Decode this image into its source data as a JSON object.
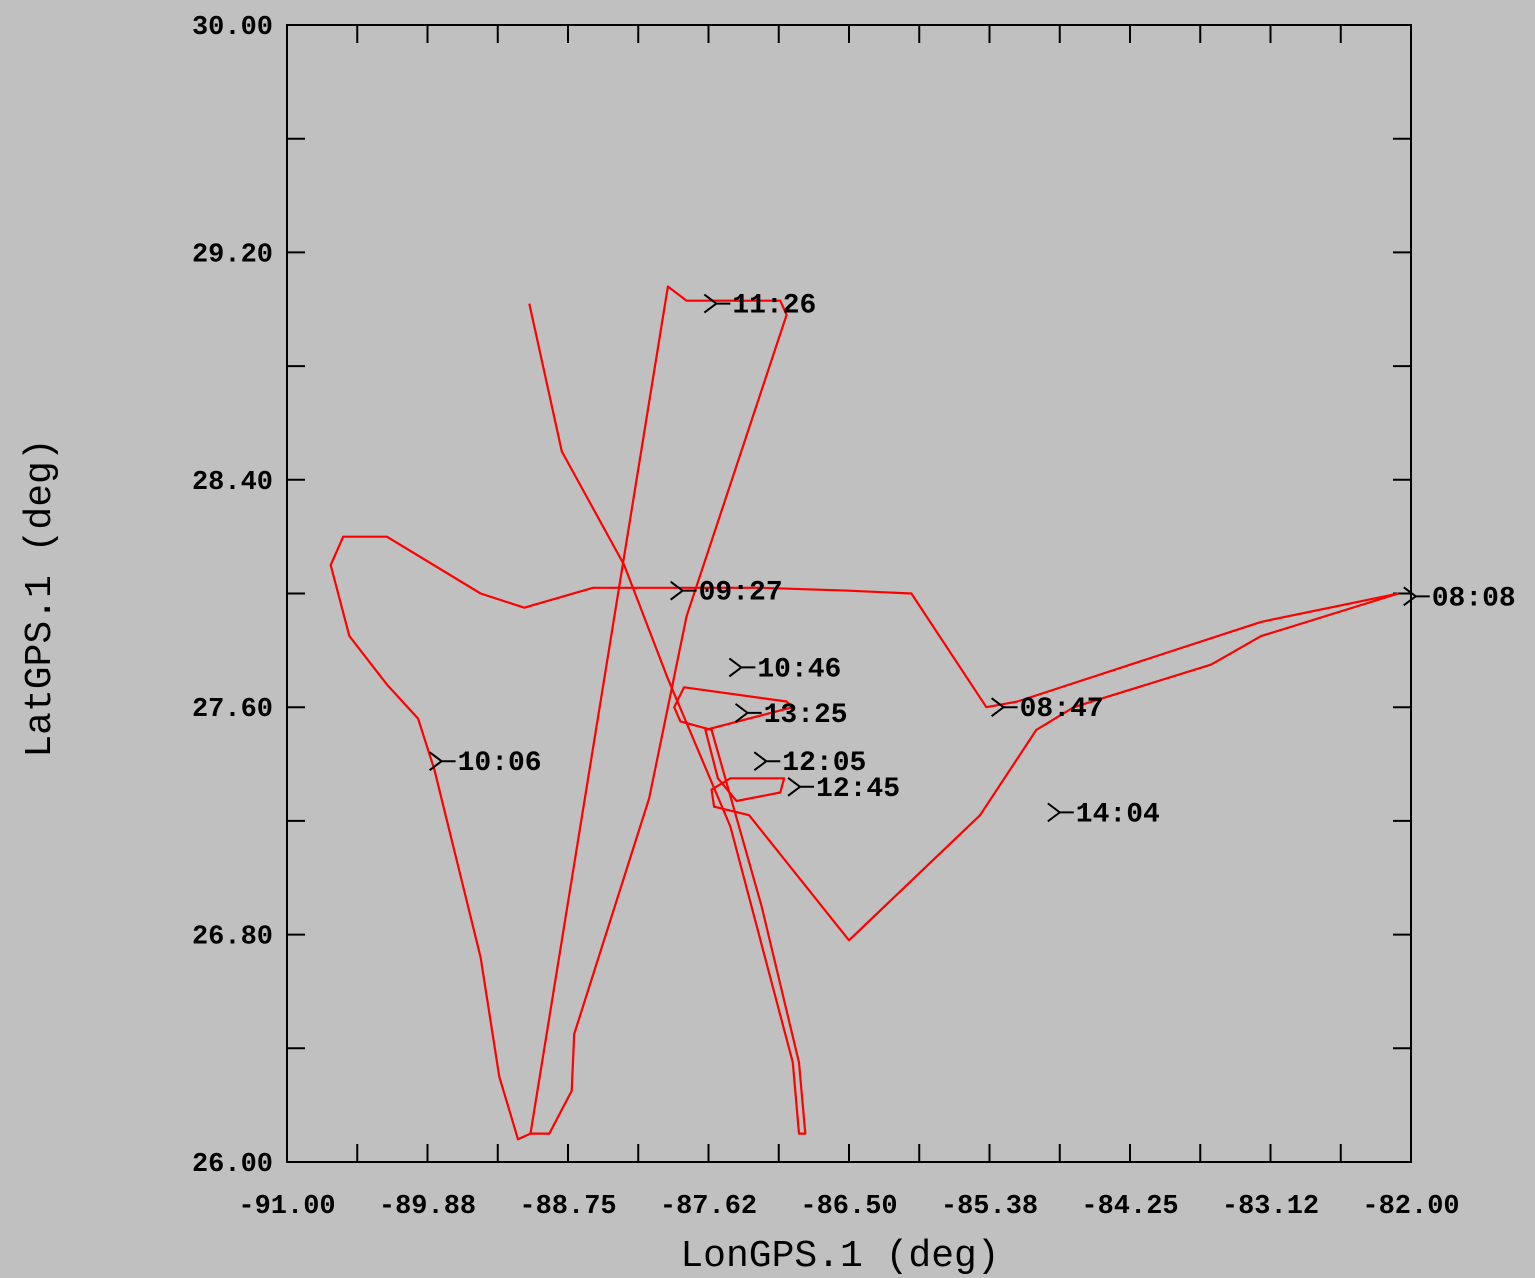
{
  "chart_data": {
    "type": "line",
    "title": "",
    "xlabel": "LonGPS.1  (deg)",
    "ylabel": "LatGPS.1  (deg)",
    "xlim": [
      -91.0,
      -82.0
    ],
    "ylim": [
      26.0,
      30.0
    ],
    "x_ticks": [
      -91.0,
      -89.875,
      -88.75,
      -87.625,
      -86.5,
      -85.375,
      -84.25,
      -83.125,
      -82.0
    ],
    "x_tick_labels": [
      "-91.00",
      "-89.88",
      "-88.75",
      "-87.62",
      "-86.50",
      "-85.38",
      "-84.25",
      "-83.12",
      "-82.00"
    ],
    "y_ticks": [
      26.0,
      26.8,
      27.6,
      28.4,
      29.2,
      30.0
    ],
    "y_tick_labels": [
      "26.00",
      "26.80",
      "27.60",
      "28.40",
      "29.20",
      "30.00"
    ],
    "grid": false,
    "series": [
      {
        "color": "#ff0000",
        "points": [
          [
            -82.1,
            28.0
          ],
          [
            -83.2,
            27.9
          ],
          [
            -85.15,
            27.62
          ],
          [
            -85.4,
            27.6
          ],
          [
            -86.0,
            28.0
          ],
          [
            -86.5,
            28.01
          ],
          [
            -87.2,
            28.02
          ],
          [
            -87.7,
            28.02
          ],
          [
            -88.55,
            28.02
          ],
          [
            -89.1,
            27.95
          ],
          [
            -89.45,
            28.0
          ],
          [
            -90.2,
            28.2
          ],
          [
            -90.55,
            28.2
          ],
          [
            -90.65,
            28.1
          ],
          [
            -90.5,
            27.85
          ],
          [
            -90.2,
            27.68
          ],
          [
            -89.95,
            27.56
          ],
          [
            -89.82,
            27.38
          ],
          [
            -89.45,
            26.72
          ],
          [
            -89.3,
            26.3
          ],
          [
            -89.15,
            26.08
          ],
          [
            -89.05,
            26.1
          ],
          [
            -87.95,
            29.08
          ],
          [
            -87.8,
            29.03
          ],
          [
            -87.6,
            29.03
          ],
          [
            -87.3,
            29.03
          ],
          [
            -87.05,
            29.03
          ],
          [
            -87.0,
            28.98
          ],
          [
            -87.8,
            27.92
          ],
          [
            -88.1,
            27.28
          ],
          [
            -88.7,
            26.45
          ],
          [
            -88.72,
            26.25
          ],
          [
            -88.9,
            26.1
          ],
          [
            -89.05,
            26.1
          ]
        ]
      },
      {
        "color": "#ff0000",
        "points": [
          [
            -89.06,
            29.02
          ],
          [
            -88.8,
            28.5
          ],
          [
            -88.3,
            28.1
          ],
          [
            -87.95,
            27.7
          ],
          [
            -87.45,
            27.18
          ],
          [
            -86.95,
            26.35
          ],
          [
            -86.9,
            26.1
          ],
          [
            -86.85,
            26.1
          ],
          [
            -86.9,
            26.35
          ],
          [
            -87.2,
            26.9
          ],
          [
            -87.6,
            27.52
          ],
          [
            -87.85,
            27.55
          ],
          [
            -87.9,
            27.6
          ],
          [
            -87.82,
            27.67
          ],
          [
            -87.0,
            27.62
          ],
          [
            -86.95,
            27.6
          ],
          [
            -87.65,
            27.52
          ],
          [
            -87.55,
            27.35
          ],
          [
            -87.4,
            27.27
          ],
          [
            -87.05,
            27.3
          ],
          [
            -87.02,
            27.35
          ],
          [
            -87.45,
            27.35
          ],
          [
            -87.6,
            27.31
          ],
          [
            -87.58,
            27.25
          ],
          [
            -87.3,
            27.22
          ],
          [
            -86.5,
            26.78
          ],
          [
            -85.45,
            27.22
          ],
          [
            -85.0,
            27.52
          ],
          [
            -84.7,
            27.6
          ],
          [
            -83.6,
            27.75
          ],
          [
            -83.2,
            27.85
          ],
          [
            -82.1,
            28.0
          ]
        ]
      }
    ],
    "time_labels": [
      {
        "text": "11:26",
        "x": -87.45,
        "y": 29.02
      },
      {
        "text": "09:27",
        "x": -87.72,
        "y": 28.01
      },
      {
        "text": "08:47",
        "x": -85.15,
        "y": 27.6
      },
      {
        "text": "08:08",
        "x": -81.85,
        "y": 27.99
      },
      {
        "text": "10:46",
        "x": -87.25,
        "y": 27.74
      },
      {
        "text": "13:25",
        "x": -87.2,
        "y": 27.58
      },
      {
        "text": "12:05",
        "x": -87.05,
        "y": 27.41
      },
      {
        "text": "12:45",
        "x": -86.78,
        "y": 27.32
      },
      {
        "text": "10:06",
        "x": -89.65,
        "y": 27.41
      },
      {
        "text": "14:04",
        "x": -84.7,
        "y": 27.23
      }
    ]
  }
}
